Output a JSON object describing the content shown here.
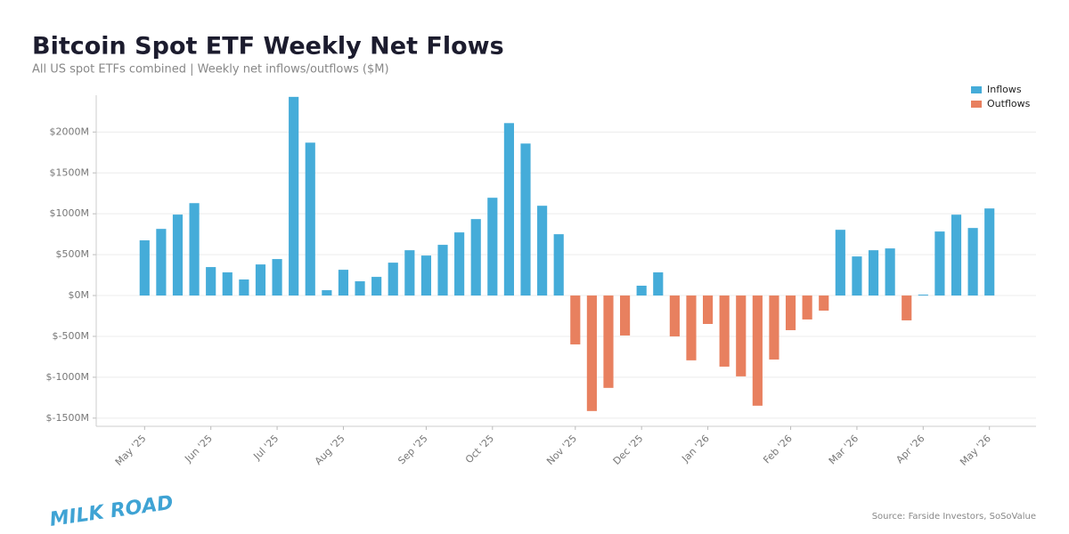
{
  "chart_data": {
    "type": "bar",
    "title": "Bitcoin Spot ETF Weekly Net Flows",
    "subtitle": "All US spot ETFs combined | Weekly net inflows/outflows ($M)",
    "source": "Source: Farside Investors, SoSoValue",
    "logo": "MILK ROAD",
    "categories": [
      "May '25",
      null,
      null,
      null,
      "Jun '25",
      null,
      null,
      null,
      "Jul '25",
      null,
      null,
      null,
      "Aug '25",
      null,
      null,
      null,
      null,
      "Sep '25",
      null,
      null,
      null,
      "Oct '25",
      null,
      null,
      null,
      null,
      "Nov '25",
      null,
      null,
      null,
      "Dec '25",
      null,
      null,
      null,
      "Jan '26",
      null,
      null,
      null,
      null,
      "Feb '26",
      null,
      null,
      null,
      "Mar '26",
      null,
      null,
      null,
      "Apr '26",
      null,
      null,
      null,
      "May '26"
    ],
    "series": [
      {
        "name": "Inflows",
        "color": "#45acd9",
        "values": [
          675,
          815,
          990,
          1130,
          348,
          283,
          196,
          380,
          446,
          2430,
          1870,
          65,
          315,
          174,
          228,
          402,
          554,
          489,
          620,
          772,
          935,
          1196,
          2109,
          1859,
          1098,
          750,
          null,
          null,
          null,
          null,
          120,
          283,
          null,
          null,
          null,
          null,
          null,
          null,
          null,
          null,
          null,
          null,
          804,
          478,
          554,
          576,
          null,
          11,
          783,
          989,
          826,
          1065
        ]
      },
      {
        "name": "Outflows",
        "color": "#e8805f",
        "values": [
          null,
          null,
          null,
          null,
          null,
          null,
          null,
          null,
          null,
          null,
          null,
          null,
          null,
          null,
          null,
          null,
          null,
          null,
          null,
          null,
          null,
          null,
          null,
          null,
          null,
          null,
          -598,
          -1413,
          -1130,
          -489,
          null,
          null,
          -500,
          -793,
          -348,
          -870,
          -989,
          -1348,
          -783,
          -424,
          -293,
          -185,
          null,
          null,
          null,
          null,
          -304,
          null,
          null,
          null,
          null,
          null
        ]
      }
    ],
    "ylim": [
      -1600,
      2450
    ],
    "yticks": [
      {
        "value": -1500,
        "label": "$-1500M"
      },
      {
        "value": -1000,
        "label": "$-1000M"
      },
      {
        "value": -500,
        "label": "$-500M"
      },
      {
        "value": 0,
        "label": "$0M"
      },
      {
        "value": 500,
        "label": "$500M"
      },
      {
        "value": 1000,
        "label": "$1000M"
      },
      {
        "value": 1500,
        "label": "$1500M"
      },
      {
        "value": 2000,
        "label": "$2000M"
      }
    ],
    "grid": true,
    "legend": "upper right"
  }
}
